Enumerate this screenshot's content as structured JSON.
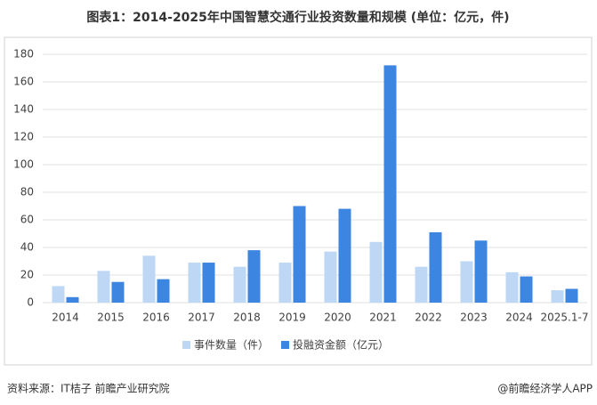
{
  "chart_data": {
    "type": "bar",
    "title": "图表1：2014-2025年中国智慧交通行业投资数量和规模 (单位：亿元，件)",
    "categories": [
      "2014",
      "2015",
      "2016",
      "2017",
      "2018",
      "2019",
      "2020",
      "2021",
      "2022",
      "2023",
      "2024",
      "2025.1-7"
    ],
    "series": [
      {
        "name": "事件数量（件）",
        "color": "#bdd7f5",
        "values": [
          12,
          23,
          34,
          29,
          26,
          29,
          37,
          44,
          26,
          30,
          22,
          9
        ]
      },
      {
        "name": "投融资金额（亿元）",
        "color": "#3c85e0",
        "values": [
          4,
          15,
          17,
          29,
          38,
          70,
          68,
          172,
          51,
          45,
          19,
          10
        ]
      }
    ],
    "ylim": [
      0,
      180
    ],
    "yticks": [
      0,
      20,
      40,
      60,
      80,
      100,
      120,
      140,
      160,
      180
    ],
    "grid": true,
    "legend": "bottom",
    "source": "资料来源：IT桔子 前瞻产业研究院",
    "credit": "@前瞻经济学人APP"
  }
}
